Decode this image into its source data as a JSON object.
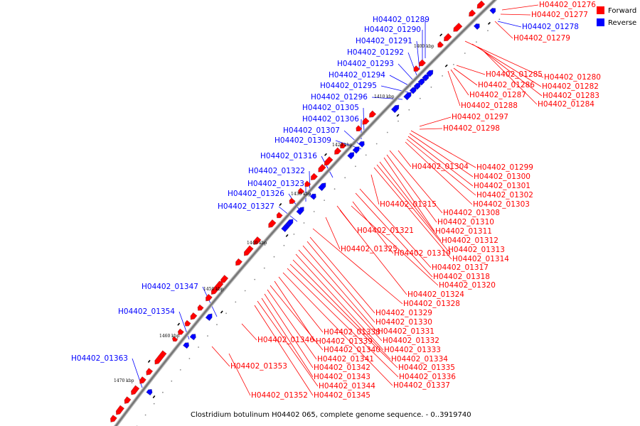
{
  "caption": "Clostridium botulinum H04402 065, complete genome sequence. - 0..3919740",
  "legend": [
    {
      "label": "Forward",
      "color": "#ff0000"
    },
    {
      "label": "Reverse",
      "color": "#0000ff"
    }
  ],
  "colors": {
    "forward": "#ff0000",
    "reverse": "#0000ff",
    "backbone": "#999999"
  },
  "ticks": [
    "1400 kbp",
    "1410 kbp",
    "1420 kbp",
    "1430 kbp",
    "1440 kbp",
    "1450 kbp",
    "1460 kbp",
    "1470 kbp"
  ],
  "reverse_labels": [
    "H04402_01278",
    "H04402_01289",
    "H04402_01290",
    "H04402_01291",
    "H04402_01292",
    "H04402_01293",
    "H04402_01294",
    "H04402_01295",
    "H04402_01296",
    "H04402_01305",
    "H04402_01306",
    "H04402_01307",
    "H04402_01309",
    "H04402_01316",
    "H04402_01322",
    "H04402_01323",
    "H04402_01326",
    "H04402_01327",
    "H04402_01347",
    "H04402_01354",
    "H04402_01363"
  ],
  "forward_labels": [
    "H04402_01276",
    "H04402_01277",
    "H04402_01279",
    "H04402_01280",
    "H04402_01282",
    "H04402_01283",
    "H04402_01284",
    "H04402_01285",
    "H04402_01286",
    "H04402_01287",
    "H04402_01288",
    "H04402_01297",
    "H04402_01298",
    "H04402_01299",
    "H04402_01300",
    "H04402_01301",
    "H04402_01302",
    "H04402_01303",
    "H04402_01304",
    "H04402_01308",
    "H04402_01310",
    "H04402_01311",
    "H04402_01312",
    "H04402_01313",
    "H04402_01314",
    "H04402_01315",
    "H04402_01317",
    "H04402_01318",
    "H04402_01319",
    "H04402_01320",
    "H04402_01321",
    "H04402_01324",
    "H04402_01325",
    "H04402_01328",
    "H04402_01329",
    "H04402_01330",
    "H04402_01331",
    "H04402_01332",
    "H04402_01333",
    "H04402_01334",
    "H04402_01335",
    "H04402_01336",
    "H04402_01337",
    "H04402_01338",
    "H04402_01339",
    "H04402_01340",
    "H04402_01341",
    "H04402_01342",
    "H04402_01343",
    "H04402_01344",
    "H04402_01345",
    "H04402_01346",
    "H04402_01352",
    "H04402_01353"
  ]
}
